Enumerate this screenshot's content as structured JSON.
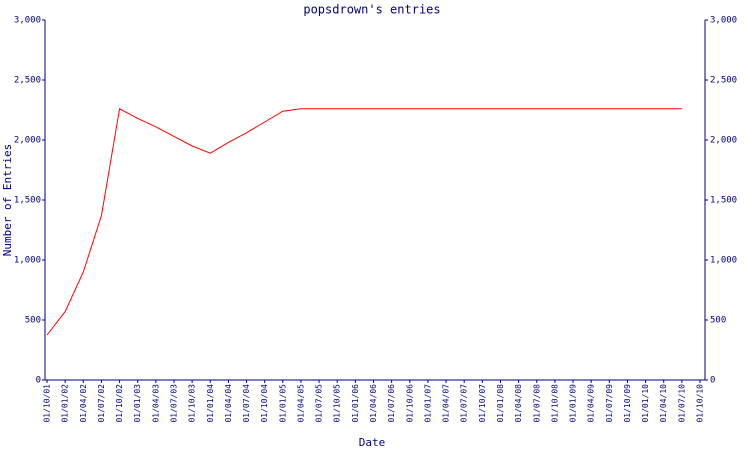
{
  "chart_data": {
    "type": "line",
    "title": "popsdrown's entries",
    "x_label": "Date",
    "y_label": "Number of Entries",
    "categories": [
      "01/10/01",
      "01/01/02",
      "01/04/02",
      "01/07/02",
      "01/10/02",
      "01/01/03",
      "01/04/03",
      "01/07/03",
      "01/10/03",
      "01/01/04",
      "01/04/04",
      "01/07/04",
      "01/10/04",
      "01/01/05",
      "01/04/05",
      "01/07/05",
      "01/10/05",
      "01/01/06",
      "01/04/06",
      "01/07/06",
      "01/10/06",
      "01/01/07",
      "01/04/07",
      "01/07/07",
      "01/10/07",
      "01/01/08",
      "01/04/08",
      "01/07/08",
      "01/10/08",
      "01/01/09",
      "01/04/09",
      "01/07/09",
      "01/10/09",
      "01/01/10",
      "01/04/10",
      "01/07/10",
      "01/10/10"
    ],
    "series": [
      {
        "name": "entries",
        "color": "#ff0000",
        "values": [
          375,
          570,
          900,
          1370,
          2260,
          2180,
          2110,
          2030,
          1950,
          1890,
          1980,
          2060,
          2150,
          2240,
          2260,
          2260,
          2260,
          2260,
          2260,
          2260,
          2260,
          2260,
          2260,
          2260,
          2260,
          2260,
          2260,
          2260,
          2260,
          2260,
          2260,
          2260,
          2260,
          2260,
          2260,
          2260,
          null
        ]
      }
    ],
    "ylim": [
      0,
      3000
    ],
    "yticks": [
      0,
      500,
      {
        "value": 1000,
        "label": "1,000"
      },
      {
        "value": 1500,
        "label": "1,500"
      },
      {
        "value": 2000,
        "label": "2,000"
      },
      {
        "value": 2500,
        "label": "2,500"
      },
      {
        "value": 3000,
        "label": "3,000"
      }
    ],
    "right_axis": true,
    "grid": false
  }
}
